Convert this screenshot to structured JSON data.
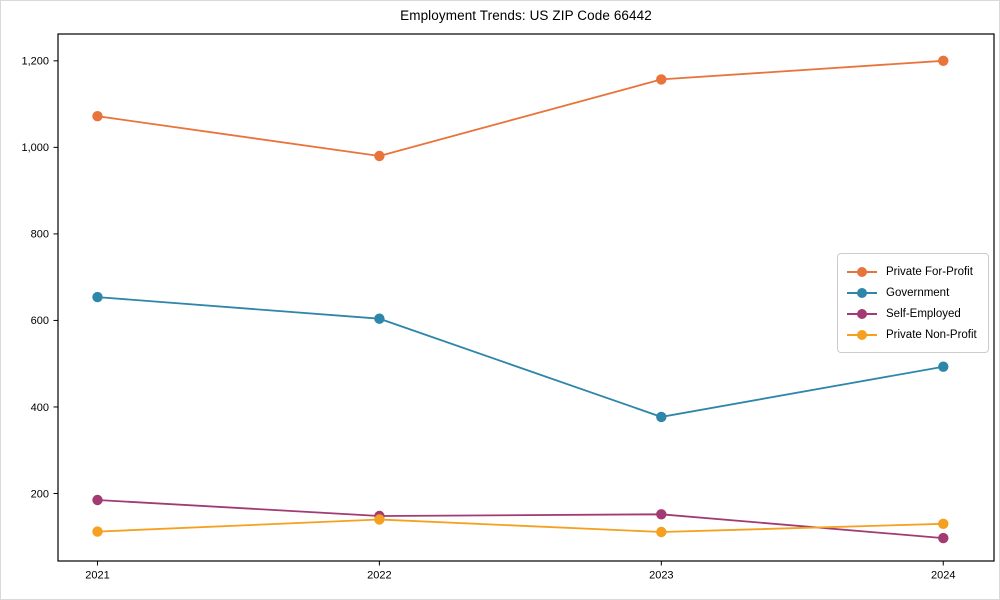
{
  "chart_data": {
    "type": "line",
    "title": "Employment Trends: US ZIP Code 66442",
    "categories": [
      2021,
      2022,
      2023,
      2024
    ],
    "x_tick_labels": [
      "2021",
      "2022",
      "2023",
      "2024"
    ],
    "series": [
      {
        "name": "Private For-Profit",
        "color": "#E8743B",
        "values": [
          1072,
          980,
          1157,
          1200
        ]
      },
      {
        "name": "Government",
        "color": "#2E86AB",
        "values": [
          654,
          604,
          377,
          493
        ]
      },
      {
        "name": "Self-Employed",
        "color": "#A23B72",
        "values": [
          185,
          148,
          152,
          97
        ]
      },
      {
        "name": "Private Non-Profit",
        "color": "#F5A01E",
        "values": [
          112,
          140,
          111,
          130
        ]
      }
    ],
    "xlabel": "",
    "ylabel": "",
    "y_ticks": [
      200,
      400,
      600,
      800,
      1000,
      1200
    ],
    "y_tick_labels": [
      "200",
      "400",
      "600",
      "800",
      "1,000",
      "1,200"
    ],
    "ylim": [
      44,
      1262
    ],
    "xlim": [
      2020.86,
      2024.18
    ],
    "grid": false,
    "marker": "circle",
    "legend_position": "center-right",
    "frame_color": "#000000",
    "text_color": "#000000"
  }
}
